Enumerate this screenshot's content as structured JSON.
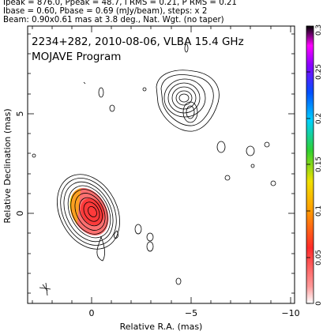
{
  "header": {
    "line1": "Ipeak = 876.0, Ppeak = 48.7, I RMS = 0.21, P RMS = 0.21",
    "line2": "Ibase = 0.60, Pbase = 0.69 (mJy/beam), steps: x 2",
    "line3": "Beam: 0.90x0.61 mas at 3.8 deg., Nat. Wgt. (no taper)"
  },
  "plot_title": {
    "line1": "2234+282, 2010-08-06, VLBA 15.4 GHz",
    "line2": "MOJAVE Program"
  },
  "colors": {
    "contour": "#000000",
    "frame": "#000000",
    "colorbar_stops": [
      "#ffffff",
      "#ff8080",
      "#ff2020",
      "#ffa000",
      "#f0e000",
      "#30d030",
      "#00c8ff",
      "#0050ff",
      "#8000ff",
      "#ff00ff",
      "#000000"
    ]
  },
  "chart_data": {
    "type": "contour",
    "xlabel": "Relative R.A. (mas)",
    "ylabel": "Relative Declination (mas)",
    "xlim": [
      3,
      -10.3
    ],
    "ylim": [
      -4.8,
      9.3
    ],
    "xticks": [
      0,
      -5,
      -10
    ],
    "yticks": [
      0,
      5
    ],
    "colorbar": {
      "range": [
        0,
        0.3
      ],
      "ticks": [
        0,
        0.05,
        0.1,
        0.15,
        0.2,
        0.25,
        0.3
      ],
      "tick_labels": [
        "0",
        "0.05",
        "0.1",
        "0.15",
        "0.2",
        "0.25",
        "0.3"
      ]
    },
    "components": [
      {
        "id": "core",
        "ra": 0.1,
        "dec": 0.0,
        "contour_levels": 9
      },
      {
        "id": "jet-knot",
        "ra": -4.9,
        "dec": 5.7,
        "contour_levels": 7
      }
    ]
  }
}
